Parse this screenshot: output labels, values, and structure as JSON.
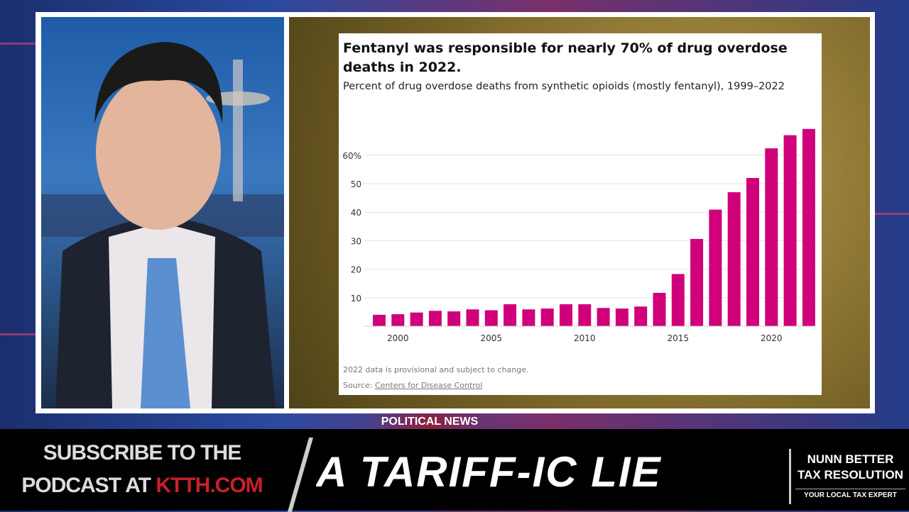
{
  "program": {
    "segment_label": "POLITICAL NEWS"
  },
  "ticker": {
    "subscribe_line1": "SUBSCRIBE TO THE",
    "subscribe_line2_prefix": "PODCAST AT ",
    "subscribe_url": "KTTH.COM",
    "headline": "A TARIFF-IC LIE",
    "sponsor_line1": "NUNN BETTER",
    "sponsor_line2": "TAX RESOLUTION",
    "sponsor_tagline": "YOUR LOCAL TAX EXPERT"
  },
  "colors": {
    "bar": "#d0007a",
    "accent_red": "#c8202c"
  },
  "chart_data": {
    "type": "bar",
    "title": "Fentanyl was responsible for nearly 70% of drug overdose deaths in 2022.",
    "subtitle": "Percent of drug overdose deaths from synthetic opioids (mostly fentanyl), 1999–2022",
    "note": "2022 data is provisional and subject to change.",
    "source_prefix": "Source: ",
    "source_link": "Centers for Disease Control",
    "categories": [
      1999,
      2000,
      2001,
      2002,
      2003,
      2004,
      2005,
      2006,
      2007,
      2008,
      2009,
      2010,
      2011,
      2012,
      2013,
      2014,
      2015,
      2016,
      2017,
      2018,
      2019,
      2020,
      2021,
      2022
    ],
    "values": [
      4.0,
      4.2,
      4.8,
      5.4,
      5.2,
      5.9,
      5.6,
      7.7,
      5.9,
      6.2,
      7.7,
      7.7,
      6.4,
      6.2,
      6.9,
      11.7,
      18.3,
      30.6,
      40.9,
      47.0,
      52.0,
      62.4,
      67.0,
      69.2
    ],
    "ylim": [
      0,
      70
    ],
    "yticks": [
      10,
      20,
      30,
      40,
      50,
      60
    ],
    "ytick_labels": [
      "10",
      "20",
      "30",
      "40",
      "50",
      "60%"
    ],
    "xticks": [
      2000,
      2005,
      2010,
      2015,
      2020
    ],
    "xtick_labels": [
      "2000",
      "2005",
      "2010",
      "2015",
      "2020"
    ],
    "grid": true
  }
}
